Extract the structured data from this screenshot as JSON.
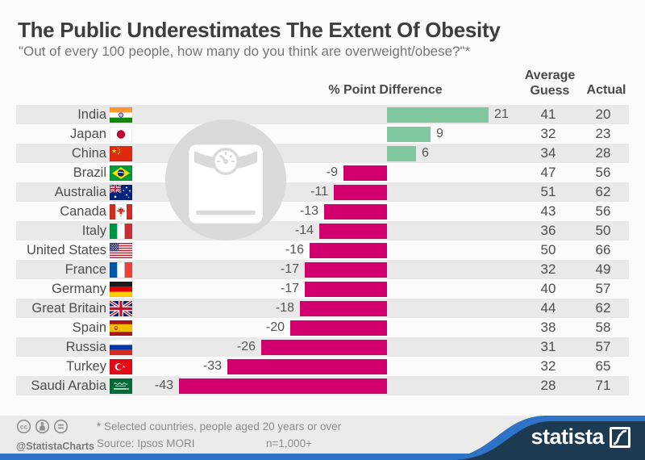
{
  "header": {
    "title": "The Public Underestimates The Extent Of Obesity",
    "subtitle": "\"Out of every 100 people, how many do you think are overweight/obese?\"*"
  },
  "columns": {
    "diff": "% Point Difference",
    "guess_line1": "Average",
    "guess_line2": "Guess",
    "actual": "Actual"
  },
  "chart_data": {
    "type": "bar",
    "orientation": "horizontal",
    "title": "The Public Underestimates The Extent Of Obesity",
    "subtitle": "\"Out of every 100 people, how many do you think are overweight/obese?\"*",
    "value_axis_label": "% Point Difference",
    "categories": [
      "India",
      "Japan",
      "China",
      "Brazil",
      "Australia",
      "Canada",
      "Italy",
      "United States",
      "France",
      "Germany",
      "Great Britain",
      "Spain",
      "Russia",
      "Turkey",
      "Saudi Arabia"
    ],
    "series": [
      {
        "name": "% Point Difference",
        "values": [
          21,
          9,
          6,
          -9,
          -11,
          -13,
          -14,
          -16,
          -17,
          -17,
          -18,
          -20,
          -26,
          -33,
          -43
        ]
      },
      {
        "name": "Average Guess",
        "values": [
          41,
          32,
          34,
          47,
          51,
          43,
          36,
          50,
          32,
          40,
          44,
          38,
          31,
          32,
          28
        ]
      },
      {
        "name": "Actual",
        "values": [
          20,
          23,
          28,
          56,
          62,
          56,
          50,
          66,
          49,
          57,
          62,
          58,
          57,
          65,
          71
        ]
      }
    ],
    "xlim": [
      -43,
      21
    ],
    "grid": false,
    "bar_labels": true,
    "positive_color": "#80c79f",
    "negative_color": "#d2006e",
    "stripe_color": "#e9e9e9"
  },
  "flags": [
    "india-flag",
    "japan-flag",
    "china-flag",
    "brazil-flag",
    "australia-flag",
    "canada-flag",
    "italy-flag",
    "united-states-flag",
    "france-flag",
    "germany-flag",
    "great-britain-flag",
    "spain-flag",
    "russia-flag",
    "turkey-flag",
    "saudi-arabia-flag"
  ],
  "icons": {
    "watermark": "bathroom-scale-icon",
    "license": [
      "cc-icon",
      "attribution-icon",
      "no-derivatives-icon"
    ],
    "brand_mark": "statista-logo-icon"
  },
  "footer": {
    "handle": "@StatistaCharts",
    "note": "* Selected countries, people aged 20 years or over",
    "source": "Source: Ipsos MORI",
    "sample": "n=1,000+",
    "brand": "statista",
    "navy": "#1c3a52",
    "blue": "#2e73c5"
  }
}
